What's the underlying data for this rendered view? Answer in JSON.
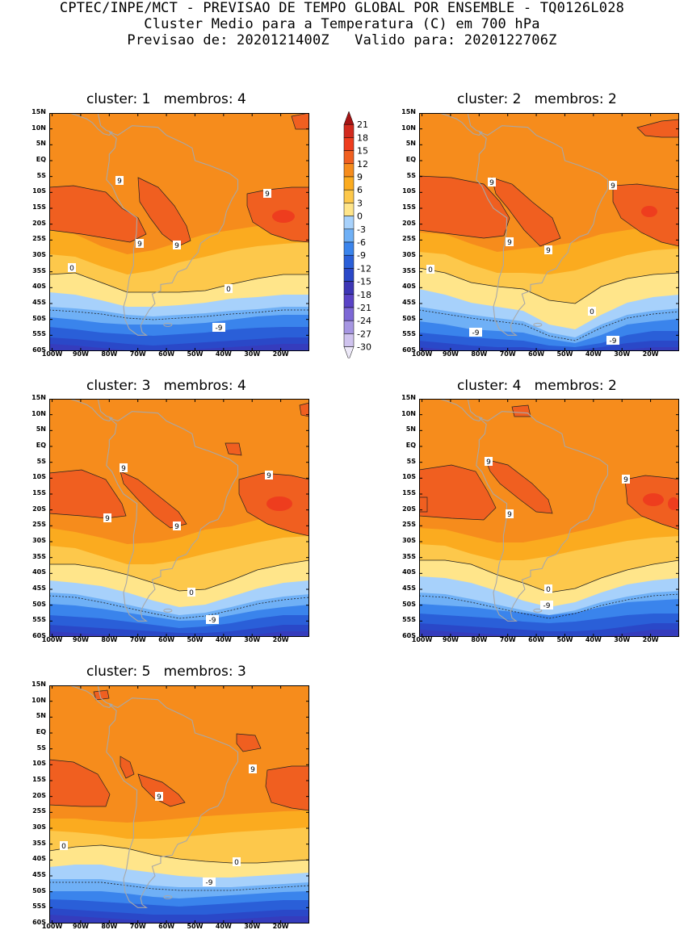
{
  "header": {
    "line1": "CPTEC/INPE/MCT - PREVISAO DE TEMPO GLOBAL POR ENSEMBLE - TQ0126L028",
    "line2": "Cluster Medio para a Temperatura (C) em 700 hPa",
    "line3": "Previsao de: 2020121400Z   Valido para: 2020122706Z"
  },
  "axes": {
    "lat_labels": [
      "15N",
      "10N",
      "5N",
      "EQ",
      "5S",
      "10S",
      "15S",
      "20S",
      "25S",
      "30S",
      "35S",
      "40S",
      "45S",
      "50S",
      "55S",
      "60S"
    ],
    "lon_labels": [
      "100W",
      "90W",
      "80W",
      "70W",
      "60W",
      "50W",
      "40W",
      "30W",
      "20W"
    ]
  },
  "colorbar": {
    "levels": [
      "21",
      "18",
      "15",
      "12",
      "9",
      "6",
      "3",
      "0",
      "-3",
      "-6",
      "-9",
      "-12",
      "-15",
      "-18",
      "-21",
      "-24",
      "-27",
      "-30"
    ],
    "colors": [
      "#a61414",
      "#d22a1e",
      "#ee3d1e",
      "#f05f20",
      "#f68c1c",
      "#fbab1f",
      "#fdc84b",
      "#ffe58a",
      "#a7d1fb",
      "#6fb0f6",
      "#3a84ec",
      "#2a5fd8",
      "#2a48c8",
      "#3d36b5",
      "#5a43c6",
      "#7d68d6",
      "#a696e2",
      "#cfc3ee",
      "#ede9f8"
    ]
  },
  "panels": [
    {
      "title": "cluster: 1   membros: 4",
      "contour_labels": [
        "9",
        "9",
        "9",
        "9",
        "0",
        "0",
        "-9"
      ]
    },
    {
      "title": "cluster: 2   membros: 2",
      "contour_labels": [
        "9",
        "9",
        "9",
        "9",
        "0",
        "0",
        "-9",
        "-9"
      ]
    },
    {
      "title": "cluster: 3   membros: 4",
      "contour_labels": [
        "9",
        "9",
        "9",
        "9",
        "0",
        "-9"
      ]
    },
    {
      "title": "cluster: 4   membros: 2",
      "contour_labels": [
        "9",
        "9",
        "9",
        "0",
        "-9"
      ]
    },
    {
      "title": "cluster: 5   membros: 3",
      "contour_labels": [
        "9",
        "9",
        "0",
        "0",
        "-9"
      ]
    }
  ]
}
